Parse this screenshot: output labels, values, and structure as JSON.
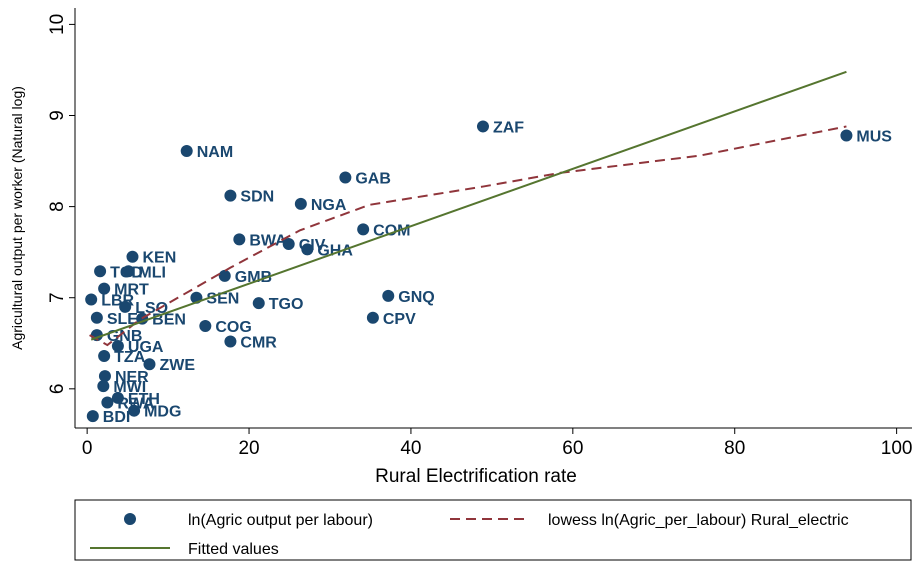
{
  "chart_data": {
    "type": "scatter",
    "xlabel": "Rural Electrification rate",
    "ylabel": "Agricultural output per worker (Natural log)",
    "xlim": [
      -1.5,
      101.9
    ],
    "ylim": [
      5.57,
      10.18
    ],
    "xticks": [
      0,
      20,
      40,
      60,
      80,
      100
    ],
    "yticks": [
      6,
      7,
      8,
      9,
      10
    ],
    "legend_position": "bottom",
    "series": [
      {
        "name": "ln(Agric output per labour)",
        "kind": "points",
        "color": "#1a476f",
        "point_labels": [
          "ZAF",
          "MUS",
          "NAM",
          "GAB",
          "SDN",
          "NGA",
          "COM",
          "BWA",
          "CIV",
          "GHA",
          "KEN",
          "TCD",
          "MLI",
          "GMB",
          "MRT",
          "GNQ",
          "LBR",
          "SEN",
          "TGO",
          "LSO",
          "SLE",
          "BEN",
          "CPV",
          "COG",
          "GNB",
          "CMR",
          "UGA",
          "TZA",
          "ZWE",
          "NER",
          "MWI",
          "ETH",
          "RWA",
          "MDG",
          "BDI"
        ],
        "x": [
          48.9,
          93.8,
          12.3,
          31.9,
          17.7,
          26.4,
          34.1,
          18.8,
          24.9,
          27.2,
          5.6,
          1.6,
          5.1,
          17.0,
          2.1,
          37.2,
          0.5,
          13.5,
          21.2,
          4.7,
          1.2,
          6.8,
          35.3,
          14.6,
          1.2,
          17.7,
          3.8,
          2.1,
          7.7,
          2.2,
          2.0,
          3.8,
          2.5,
          5.8,
          0.7
        ],
        "values": [
          8.88,
          8.78,
          8.61,
          8.32,
          8.12,
          8.03,
          7.75,
          7.64,
          7.59,
          7.53,
          7.45,
          7.29,
          7.29,
          7.24,
          7.1,
          7.02,
          6.98,
          7.0,
          6.94,
          6.9,
          6.78,
          6.77,
          6.78,
          6.69,
          6.59,
          6.52,
          6.47,
          6.36,
          6.27,
          6.14,
          6.03,
          5.9,
          5.85,
          5.76,
          5.7
        ]
      },
      {
        "name": "lowess ln(Agric_per_labour) Rural_electric",
        "kind": "dashed",
        "color": "#90353b",
        "x": [
          0.3,
          2.5,
          6.5,
          17.7,
          26.3,
          34.9,
          48.9,
          58.4,
          75.7,
          93.8
        ],
        "values": [
          6.59,
          6.48,
          6.76,
          7.33,
          7.74,
          8.02,
          8.22,
          8.37,
          8.56,
          8.88
        ]
      },
      {
        "name": "Fitted values",
        "kind": "solid",
        "color": "#55752f",
        "x": [
          0.5,
          93.8
        ],
        "values": [
          6.54,
          9.48
        ]
      }
    ]
  }
}
